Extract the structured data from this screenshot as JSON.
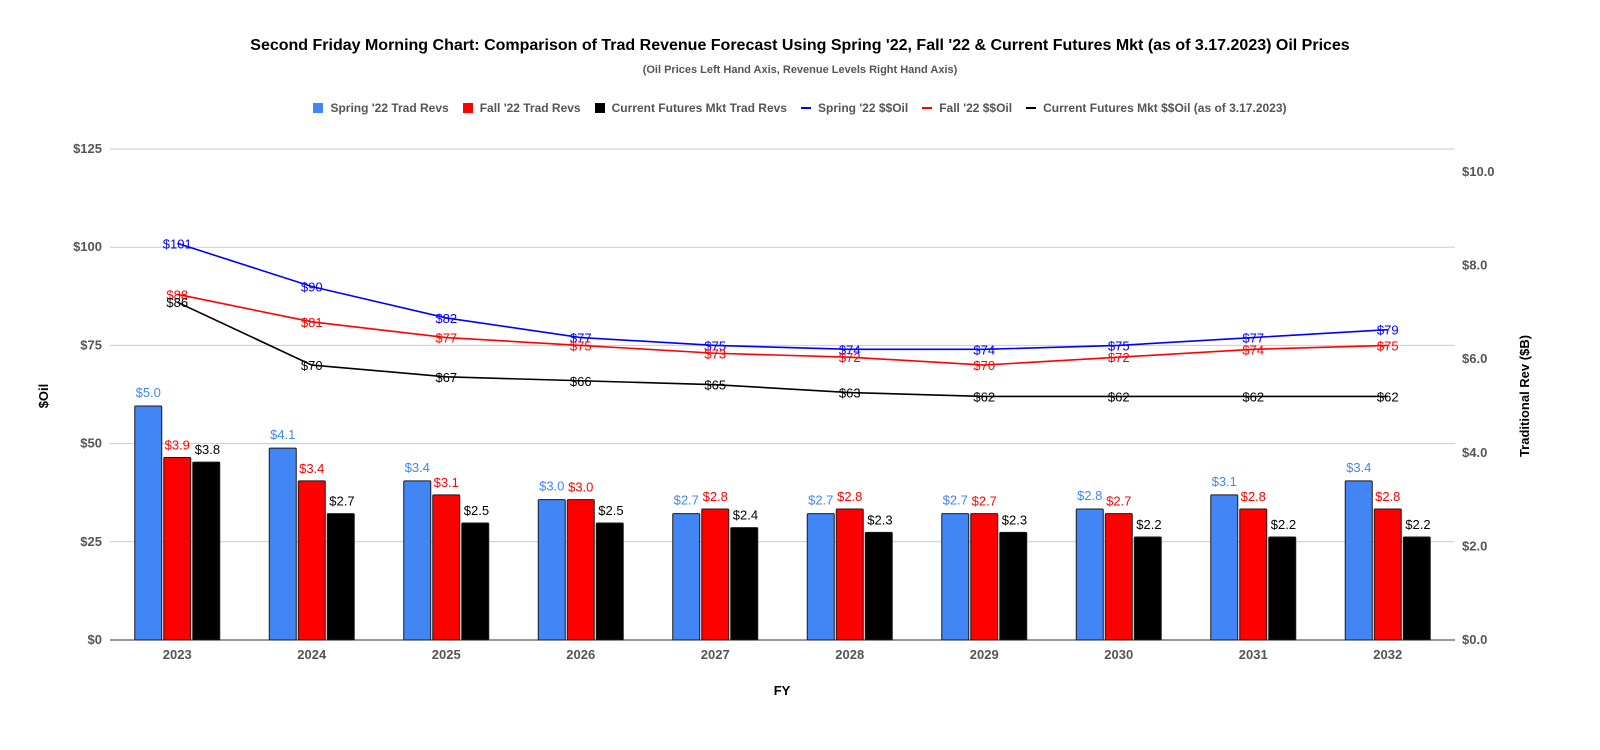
{
  "chart_data": {
    "type": "bar",
    "title": "Second Friday Morning Chart: Comparison of Trad Revenue Forecast Using Spring '22, Fall '22 & Current Futures Mkt (as of 3.17.2023) Oil Prices",
    "subtitle": "(Oil Prices Left Hand Axis, Revenue Levels Right Hand Axis)",
    "xlabel": "FY",
    "ylabel_left": "$Oil",
    "ylabel_right": "Traditional Rev ($B)",
    "ylim_left": [
      0,
      125
    ],
    "ylim_right": [
      0,
      10
    ],
    "y_ticks_left": [
      "$0",
      "$25",
      "$50",
      "$75",
      "$100",
      "$125"
    ],
    "y_ticks_right": [
      "$0.0",
      "$2.0",
      "$4.0",
      "$6.0",
      "$8.0",
      "$10.0"
    ],
    "grid": true,
    "legend_position": "top",
    "categories": [
      "2023",
      "2024",
      "2025",
      "2026",
      "2027",
      "2028",
      "2029",
      "2030",
      "2031",
      "2032"
    ],
    "bar_series": [
      {
        "name": "Spring '22 Trad Revs",
        "color": "#4285f4",
        "label_color": "#4285f4",
        "values": [
          5.0,
          4.1,
          3.4,
          3.0,
          2.7,
          2.7,
          2.7,
          2.8,
          3.1,
          3.4
        ],
        "labels": [
          "$5.0",
          "$4.1",
          "$3.4",
          "$3.0",
          "$2.7",
          "$2.7",
          "$2.7",
          "$2.8",
          "$3.1",
          "$3.4"
        ]
      },
      {
        "name": "Fall '22 Trad Revs",
        "color": "#ff0000",
        "label_color": "#ff0000",
        "values": [
          3.9,
          3.4,
          3.1,
          3.0,
          2.8,
          2.8,
          2.7,
          2.7,
          2.8,
          2.8
        ],
        "labels": [
          "$3.9",
          "$3.4",
          "$3.1",
          "$3.0",
          "$2.8",
          "$2.8",
          "$2.7",
          "$2.7",
          "$2.8",
          "$2.8"
        ]
      },
      {
        "name": "Current Futures Mkt Trad Revs",
        "color": "#000000",
        "label_color": "#000000",
        "values": [
          3.8,
          2.7,
          2.5,
          2.5,
          2.4,
          2.3,
          2.3,
          2.2,
          2.2,
          2.2
        ],
        "labels": [
          "$3.8",
          "$2.7",
          "$2.5",
          "$2.5",
          "$2.4",
          "$2.3",
          "$2.3",
          "$2.2",
          "$2.2",
          "$2.2"
        ]
      }
    ],
    "line_series": [
      {
        "name": "Spring '22 $$Oil",
        "color": "#0000ff",
        "values": [
          101,
          90,
          82,
          77,
          75,
          74,
          74,
          75,
          77,
          79
        ],
        "labels": [
          "$101",
          "$90",
          "$82",
          "$77",
          "$75",
          "$74",
          "$74",
          "$75",
          "$77",
          "$79"
        ]
      },
      {
        "name": "Fall '22 $$Oil",
        "color": "#ff0000",
        "values": [
          88,
          81,
          77,
          75,
          73,
          72,
          70,
          72,
          74,
          75
        ],
        "labels": [
          "$88",
          "$81",
          "$77",
          "$75",
          "$73",
          "$72",
          "$70",
          "$72",
          "$74",
          "$75"
        ]
      },
      {
        "name": "Current Futures Mkt $$Oil (as of 3.17.2023)",
        "color": "#000000",
        "values": [
          86,
          70,
          67,
          66,
          65,
          63,
          62,
          62,
          62,
          62
        ],
        "labels": [
          "$86",
          "$70",
          "$67",
          "$66",
          "$65",
          "$63",
          "$62",
          "$62",
          "$62",
          "$62"
        ]
      }
    ]
  },
  "legend": {
    "items": [
      {
        "label": "Spring '22 Trad Revs",
        "color": "#4285f4"
      },
      {
        "label": "Fall '22 Trad Revs",
        "color": "#ff0000"
      },
      {
        "label": "Current Futures Mkt Trad Revs",
        "color": "#000000"
      },
      {
        "label": "Spring '22 $$Oil",
        "color": "#0000ff"
      },
      {
        "label": "Fall '22 $$Oil",
        "color": "#ff0000"
      },
      {
        "label": "Current Futures Mkt $$Oil (as of 3.17.2023)",
        "color": "#000000"
      }
    ]
  },
  "colors": {
    "grid": "#cccccc",
    "axis_text": "#555555",
    "title": "#000000"
  }
}
